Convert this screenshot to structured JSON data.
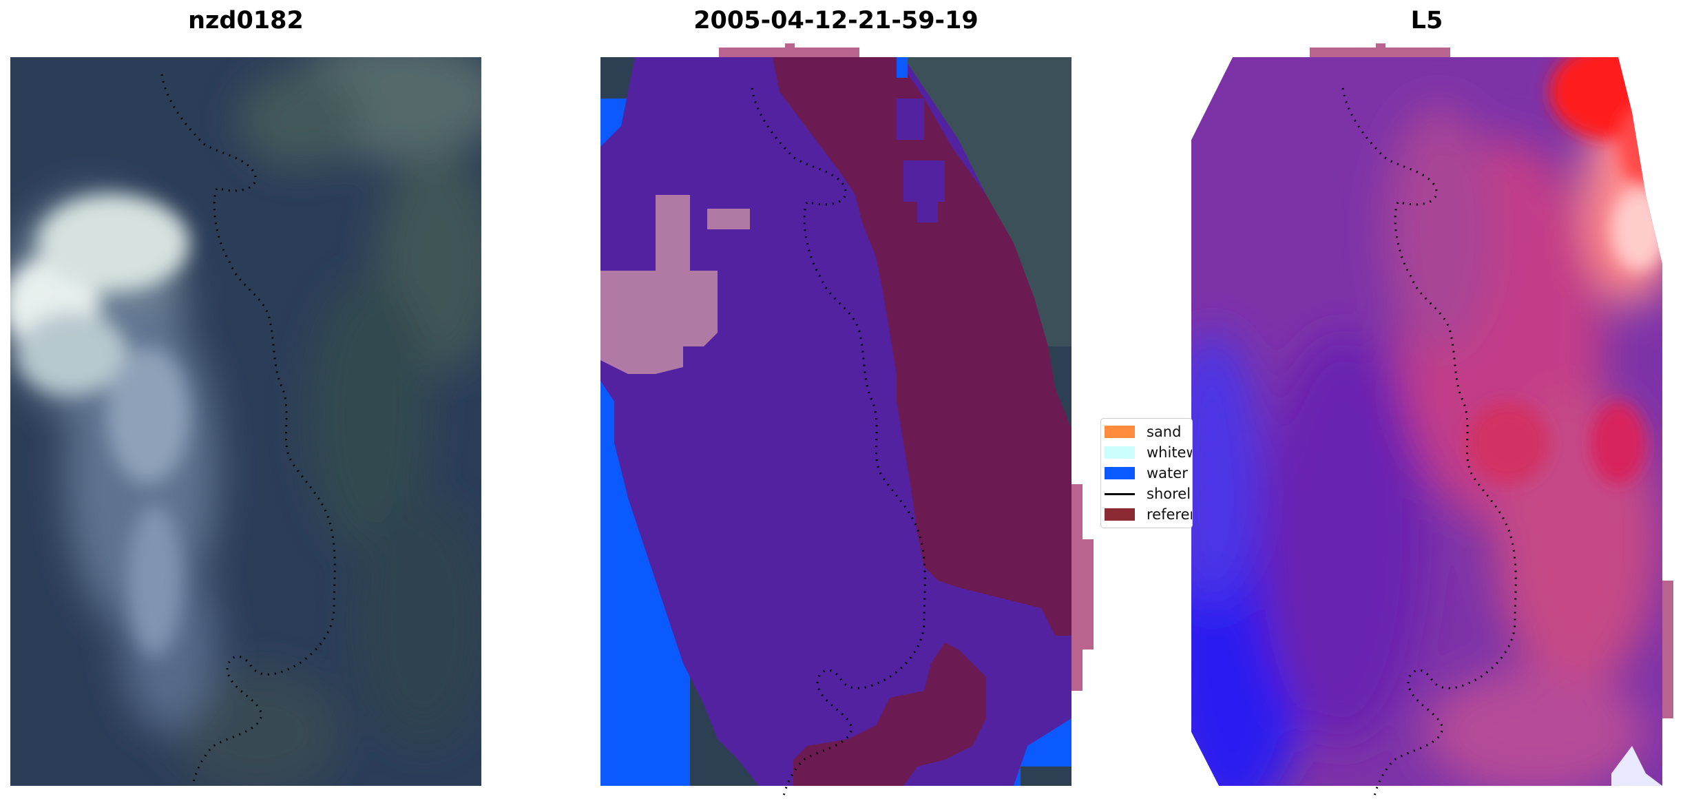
{
  "titles": {
    "left": "nzd0182",
    "middle": "2005-04-12-21-59-19",
    "right": "L5"
  },
  "legend": {
    "items": [
      {
        "label": "sand",
        "color": "#ff8c3c",
        "kind": "patch"
      },
      {
        "label": "whitew",
        "color": "#ccfefe",
        "kind": "patch"
      },
      {
        "label": "water",
        "color": "#0a5aff",
        "kind": "patch"
      },
      {
        "label": "shorel",
        "color": "#000000",
        "kind": "line"
      },
      {
        "label": "referer",
        "color": "#8b2a33",
        "kind": "patch"
      }
    ]
  },
  "colors": {
    "satellite_base": "#2c3d58",
    "satellite_forest": "#4a5f5e",
    "satellite_cloud": "#b7c9d4",
    "class_land": "#5322a0",
    "class_reference": "#6b1a52",
    "class_water": "#0a5aff",
    "class_buffer": "#b9638f",
    "class_highlight": "#b07aa4",
    "index_low": "#0000ff",
    "index_mid": "#7a2ea8",
    "index_high": "#ff0000",
    "shoreline": "#000000"
  }
}
